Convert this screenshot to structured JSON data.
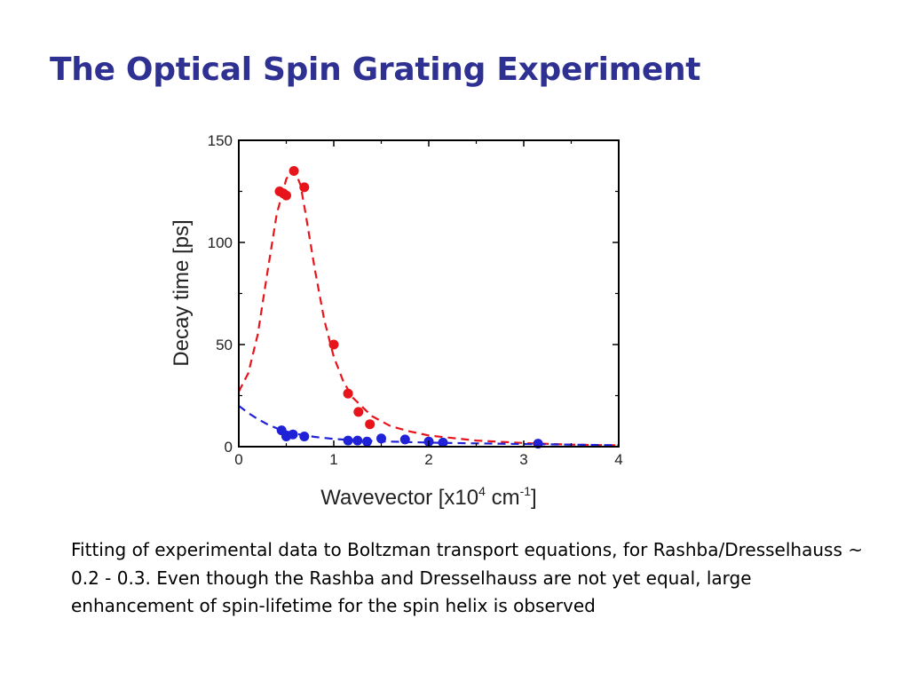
{
  "slide": {
    "title": "The Optical Spin Grating Experiment",
    "caption": "Fitting of experimental data to Boltzman transport equations, for Rashba/Dresselhauss ~ 0.2 - 0.3. Even though the Rashba and Dresselhauss are not yet equal, large enhancement of spin-lifetime for the spin helix is observed"
  },
  "colors": {
    "title": "#2e3192",
    "red_series": "#e8141c",
    "blue_series": "#1f22d6"
  },
  "chart_data": {
    "type": "scatter",
    "title": "",
    "xlabel": {
      "base": "Wavevector [x10",
      "sup1": "4",
      "mid": " cm",
      "sup2": "-1",
      "end": "]"
    },
    "ylabel": "Decay time [ps]",
    "xlim": [
      0,
      4
    ],
    "ylim": [
      0,
      150
    ],
    "xticks": [
      0,
      1,
      2,
      3,
      4
    ],
    "yticks": [
      0,
      50,
      100,
      150
    ],
    "grid": false,
    "series": [
      {
        "color": "red",
        "points": [
          [
            0.43,
            125
          ],
          [
            0.47,
            124
          ],
          [
            0.5,
            123
          ],
          [
            0.58,
            135
          ],
          [
            0.69,
            127
          ],
          [
            1.0,
            50
          ],
          [
            1.15,
            26
          ],
          [
            1.26,
            17
          ],
          [
            1.38,
            11
          ]
        ],
        "fit": [
          [
            0.0,
            27
          ],
          [
            0.1,
            36
          ],
          [
            0.2,
            55
          ],
          [
            0.3,
            85
          ],
          [
            0.4,
            114
          ],
          [
            0.5,
            131
          ],
          [
            0.55,
            135
          ],
          [
            0.6,
            134
          ],
          [
            0.65,
            128
          ],
          [
            0.7,
            115
          ],
          [
            0.8,
            87
          ],
          [
            0.9,
            62
          ],
          [
            1.0,
            44
          ],
          [
            1.1,
            32
          ],
          [
            1.2,
            24
          ],
          [
            1.4,
            15
          ],
          [
            1.6,
            10
          ],
          [
            1.8,
            7.5
          ],
          [
            2.0,
            5.5
          ],
          [
            2.5,
            3
          ],
          [
            3.0,
            1.8
          ],
          [
            3.5,
            1.0
          ],
          [
            4.0,
            0.6
          ]
        ]
      },
      {
        "color": "blue",
        "points": [
          [
            0.45,
            8
          ],
          [
            0.5,
            5
          ],
          [
            0.57,
            6
          ],
          [
            0.69,
            5
          ],
          [
            1.15,
            3
          ],
          [
            1.25,
            3
          ],
          [
            1.35,
            2.5
          ],
          [
            1.5,
            4
          ],
          [
            1.75,
            3.5
          ],
          [
            2.0,
            2.5
          ],
          [
            2.15,
            2
          ],
          [
            3.15,
            1.5
          ]
        ],
        "fit": [
          [
            0.0,
            20
          ],
          [
            0.1,
            16.5
          ],
          [
            0.2,
            13.5
          ],
          [
            0.3,
            11
          ],
          [
            0.4,
            9
          ],
          [
            0.5,
            7.5
          ],
          [
            0.6,
            6.3
          ],
          [
            0.8,
            4.8
          ],
          [
            1.0,
            3.8
          ],
          [
            1.2,
            3.2
          ],
          [
            1.5,
            2.6
          ],
          [
            2.0,
            2.0
          ],
          [
            2.5,
            1.6
          ],
          [
            3.0,
            1.3
          ],
          [
            3.5,
            1.0
          ],
          [
            4.0,
            0.7
          ]
        ]
      }
    ]
  }
}
